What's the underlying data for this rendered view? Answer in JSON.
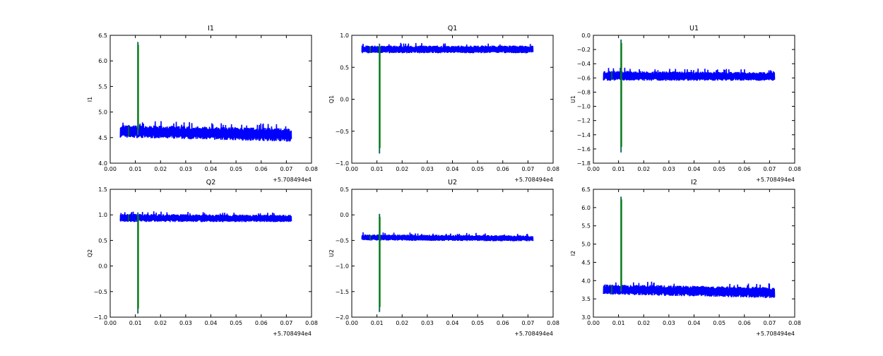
{
  "chart_data": [
    {
      "type": "line",
      "title": "I1",
      "ylabel": "I1",
      "xlim": [
        0,
        0.08
      ],
      "ylim": [
        4.0,
        6.5
      ],
      "xticks": [
        "0.00",
        "0.01",
        "0.02",
        "0.03",
        "0.04",
        "0.05",
        "0.06",
        "0.07",
        "0.08"
      ],
      "yticks": [
        "4.0",
        "4.5",
        "5.0",
        "5.5",
        "6.0",
        "6.5"
      ],
      "x_offset": "+5.708494e4",
      "band": {
        "x": [
          0.004,
          0.072
        ],
        "low": [
          4.5,
          4.42
        ],
        "high": [
          4.75,
          4.68
        ]
      },
      "spike": {
        "x": 0.011,
        "min": 4.55,
        "max": 6.37
      }
    },
    {
      "type": "line",
      "title": "Q1",
      "ylabel": "Q1",
      "xlim": [
        0,
        0.08
      ],
      "ylim": [
        -1.0,
        1.0
      ],
      "xticks": [
        "0.00",
        "0.01",
        "0.02",
        "0.03",
        "0.04",
        "0.05",
        "0.06",
        "0.07",
        "0.08"
      ],
      "yticks": [
        "−1.0",
        "−0.5",
        "0.0",
        "0.5",
        "1.0"
      ],
      "x_offset": "+5.708494e4",
      "band": {
        "x": [
          0.004,
          0.072
        ],
        "low": [
          0.72,
          0.72
        ],
        "high": [
          0.84,
          0.84
        ]
      },
      "spike": {
        "x": 0.011,
        "min": -0.85,
        "max": 0.87
      }
    },
    {
      "type": "line",
      "title": "U1",
      "ylabel": "U1",
      "xlim": [
        0,
        0.08
      ],
      "ylim": [
        -1.8,
        0.0
      ],
      "xticks": [
        "0.00",
        "0.01",
        "0.02",
        "0.03",
        "0.04",
        "0.05",
        "0.06",
        "0.07",
        "0.08"
      ],
      "yticks": [
        "−1.8",
        "−1.6",
        "−1.4",
        "−1.2",
        "−1.0",
        "−0.8",
        "−0.6",
        "−0.4",
        "−0.2",
        "0.0"
      ],
      "x_offset": "+5.708494e4",
      "band": {
        "x": [
          0.004,
          0.072
        ],
        "low": [
          -0.64,
          -0.64
        ],
        "high": [
          -0.5,
          -0.52
        ]
      },
      "spike": {
        "x": 0.011,
        "min": -1.65,
        "max": -0.06
      }
    },
    {
      "type": "line",
      "title": "Q2",
      "ylabel": "Q2",
      "xlim": [
        0,
        0.08
      ],
      "ylim": [
        -1.0,
        1.5
      ],
      "xticks": [
        "0.00",
        "0.01",
        "0.02",
        "0.03",
        "0.04",
        "0.05",
        "0.06",
        "0.07",
        "0.08"
      ],
      "yticks": [
        "−1.0",
        "−0.5",
        "0.0",
        "0.5",
        "1.0",
        "1.5"
      ],
      "x_offset": "+5.708494e4",
      "band": {
        "x": [
          0.004,
          0.072
        ],
        "low": [
          0.86,
          0.86
        ],
        "high": [
          1.02,
          1.0
        ]
      },
      "spike": {
        "x": 0.011,
        "min": -0.93,
        "max": 1.05
      }
    },
    {
      "type": "line",
      "title": "U2",
      "ylabel": "U2",
      "xlim": [
        0,
        0.08
      ],
      "ylim": [
        -2.0,
        0.5
      ],
      "xticks": [
        "0.00",
        "0.01",
        "0.02",
        "0.03",
        "0.04",
        "0.05",
        "0.06",
        "0.07",
        "0.08"
      ],
      "yticks": [
        "−2.0",
        "−1.5",
        "−1.0",
        "−0.5",
        "0.0",
        "0.5"
      ],
      "x_offset": "+5.708494e4",
      "band": {
        "x": [
          0.004,
          0.072
        ],
        "low": [
          -0.5,
          -0.52
        ],
        "high": [
          -0.38,
          -0.4
        ]
      },
      "spike": {
        "x": 0.011,
        "min": -1.9,
        "max": 0.02
      }
    },
    {
      "type": "line",
      "title": "I2",
      "ylabel": "I2",
      "xlim": [
        0,
        0.08
      ],
      "ylim": [
        3.0,
        6.5
      ],
      "xticks": [
        "0.00",
        "0.01",
        "0.02",
        "0.03",
        "0.04",
        "0.05",
        "0.06",
        "0.07",
        "0.08"
      ],
      "yticks": [
        "3.0",
        "3.5",
        "4.0",
        "4.5",
        "5.0",
        "5.5",
        "6.0",
        "6.5"
      ],
      "x_offset": "+5.708494e4",
      "band": {
        "x": [
          0.004,
          0.072
        ],
        "low": [
          3.62,
          3.52
        ],
        "high": [
          3.9,
          3.82
        ]
      },
      "spike": {
        "x": 0.011,
        "min": 3.7,
        "max": 6.3
      }
    }
  ],
  "colors": {
    "series1": "#0000ff",
    "series2": "#008000",
    "spike_blend": "#1a6a6a"
  }
}
